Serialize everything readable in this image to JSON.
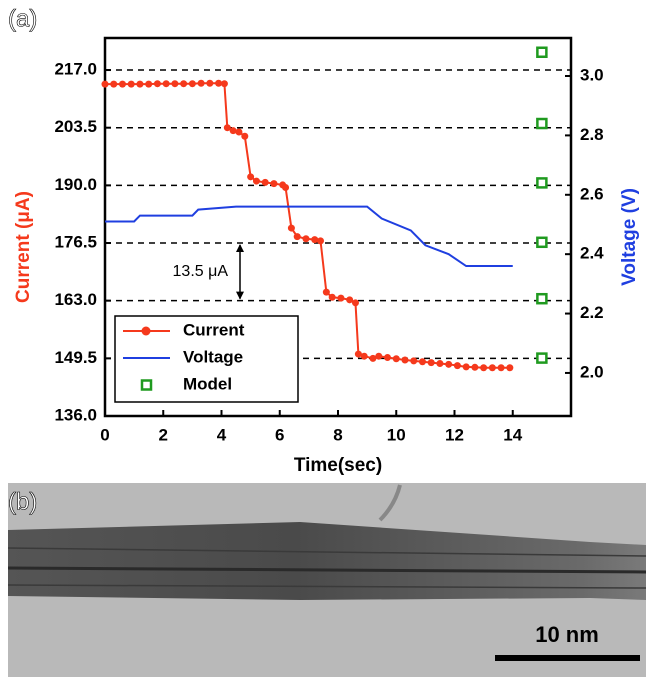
{
  "chart_data": {
    "type": "line",
    "panel_label": "(a)",
    "x_label": "Time(sec)",
    "y_label": "Current (μA)",
    "y2_label": "Voltage (V)",
    "xlim": [
      0,
      16
    ],
    "xticks": [
      0,
      2,
      4,
      6,
      8,
      10,
      12,
      14
    ],
    "ylim": [
      136,
      224.5
    ],
    "yticks": [
      {
        "value": 136,
        "label": "136.0"
      },
      149.5,
      {
        "value": 163,
        "label": "163.0"
      },
      176.5,
      {
        "value": 190,
        "label": "190.0"
      },
      203.5,
      {
        "value": 217,
        "label": "217.0"
      }
    ],
    "y2lim": [
      1.855,
      3.128
    ],
    "y2ticks": [
      {
        "value": 2,
        "label": "2.0"
      },
      2.2,
      2.4,
      2.6,
      2.8,
      {
        "value": 3,
        "label": "3.0"
      }
    ],
    "grid": true,
    "legend": "lower left",
    "annotation": "13.5 μA",
    "series": [
      {
        "name": "Current",
        "color": "#f5391c",
        "mode": "lines+markers",
        "x": [
          0,
          0.3,
          0.6,
          0.9,
          1.2,
          1.5,
          1.8,
          2.1,
          2.4,
          2.7,
          3.0,
          3.3,
          3.6,
          3.9,
          4.1,
          4.2,
          4.4,
          4.6,
          4.8,
          5.0,
          5.2,
          5.5,
          5.8,
          6.1,
          6.2,
          6.4,
          6.6,
          6.9,
          7.2,
          7.4,
          7.6,
          7.8,
          8.1,
          8.4,
          8.6,
          8.7,
          8.9,
          9.2,
          9.4,
          9.7,
          10.0,
          10.3,
          10.6,
          10.9,
          11.2,
          11.5,
          11.8,
          12.1,
          12.4,
          12.7,
          13.0,
          13.3,
          13.6,
          13.9
        ],
        "values": [
          213.7,
          213.7,
          213.7,
          213.7,
          213.7,
          213.7,
          213.8,
          213.8,
          213.8,
          213.8,
          213.8,
          213.9,
          213.9,
          213.9,
          213.8,
          203.5,
          202.8,
          202.5,
          201.5,
          192,
          191,
          190.7,
          190.4,
          190.1,
          189.5,
          180,
          178,
          177.5,
          177.3,
          177,
          165,
          163.8,
          163.6,
          163.2,
          162.5,
          150.5,
          150,
          149.5,
          150,
          149.7,
          149.4,
          149.1,
          148.9,
          148.7,
          148.5,
          148.3,
          148.1,
          147.8,
          147.5,
          147.4,
          147.3,
          147.3,
          147.3,
          147.3
        ]
      },
      {
        "name": "Voltage",
        "color": "#1f3fe0",
        "mode": "lines",
        "axis": "y2",
        "x": [
          0,
          1,
          1.2,
          3,
          3.2,
          4.5,
          9,
          9.5,
          10.5,
          11,
          11.8,
          12.4,
          14
        ],
        "values": [
          2.51,
          2.51,
          2.53,
          2.53,
          2.55,
          2.56,
          2.56,
          2.52,
          2.48,
          2.43,
          2.4,
          2.36,
          2.36
        ]
      },
      {
        "name": "Model",
        "color": "#1f9a1f",
        "mode": "markers",
        "axis": "y2",
        "x": [
          15,
          15,
          15,
          15,
          15,
          15
        ],
        "values": [
          3.08,
          2.84,
          2.64,
          2.44,
          2.25,
          2.05
        ]
      }
    ]
  },
  "image": {
    "panel_label": "(b)",
    "scale_bar": "10 nm"
  }
}
